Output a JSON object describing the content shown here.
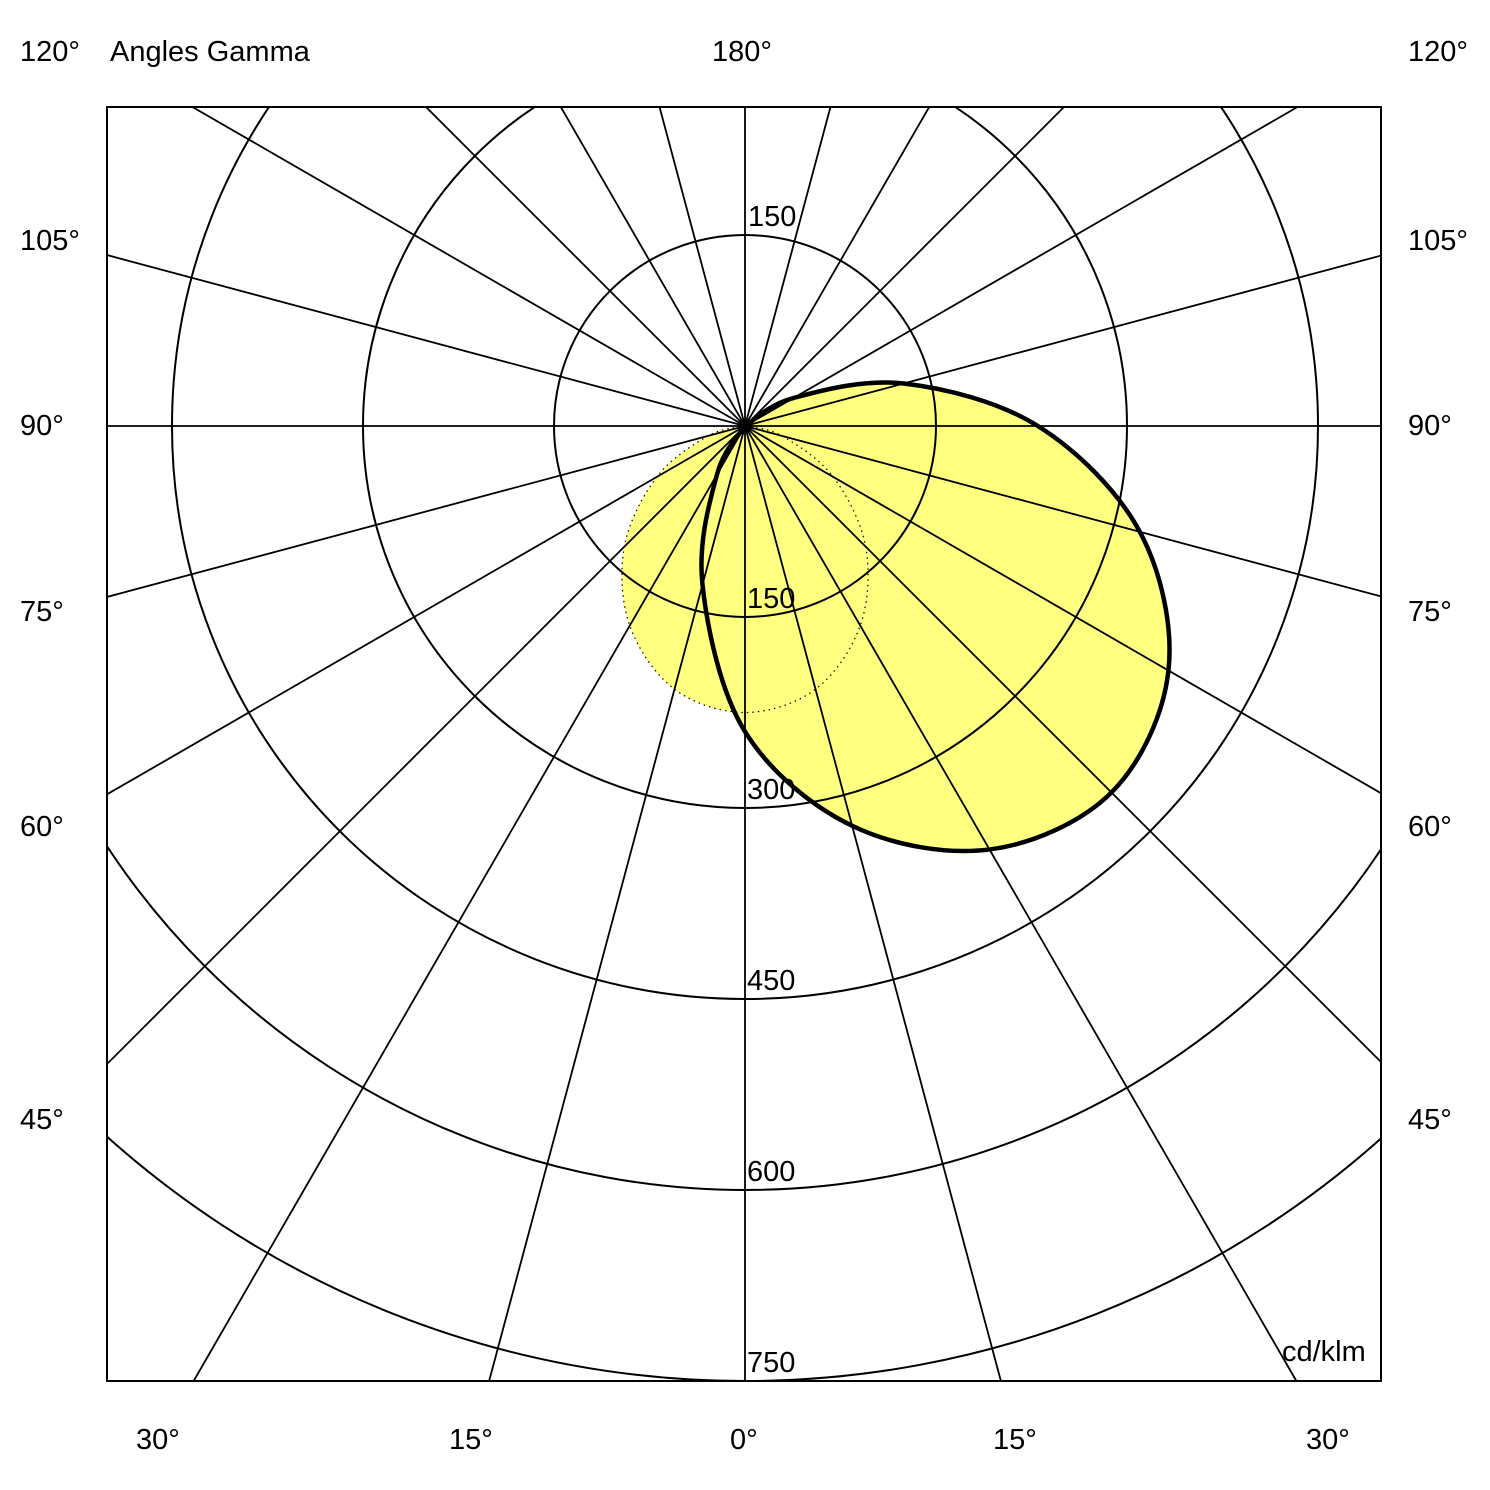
{
  "chart_data": {
    "type": "polar",
    "title": "Angles Gamma",
    "unit": "cd/klm",
    "radial_ticks": [
      150,
      300,
      450,
      600,
      750
    ],
    "radial_top_label": "150",
    "rmax": 750,
    "angle_step_deg": 15,
    "angle_labels": {
      "top": "180°",
      "left": [
        "120°",
        "105°",
        "90°",
        "75°",
        "60°",
        "45°"
      ],
      "right": [
        "120°",
        "105°",
        "90°",
        "75°",
        "60°",
        "45°"
      ],
      "bottom": [
        "30°",
        "15°",
        "0°",
        "15°",
        "30°"
      ]
    },
    "fill_color": "#ffff80",
    "series": [
      {
        "style": "solid",
        "gamma": [
          -45,
          -30,
          -15,
          0,
          15,
          30,
          45,
          60,
          75,
          90,
          105,
          120,
          135
        ],
        "values": [
          0,
          44,
          129,
          240,
          325,
          384,
          407,
          384,
          321,
          230,
          129,
          44,
          0
        ]
      },
      {
        "style": "dotted",
        "gamma": [
          -90,
          -75,
          -60,
          -45,
          -30,
          -15,
          0,
          15,
          30,
          45,
          60,
          75,
          90
        ],
        "values": [
          0,
          30,
          80,
          134,
          181,
          214,
          225,
          214,
          181,
          134,
          80,
          30,
          0
        ]
      }
    ]
  }
}
